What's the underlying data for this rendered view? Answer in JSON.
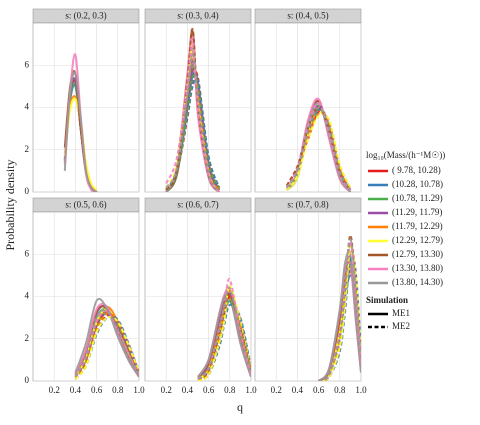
{
  "chart_data": {
    "type": "line",
    "xlabel": "q",
    "ylabel": "Probability density",
    "xlim": [
      0,
      1
    ],
    "xticks": [
      0.2,
      0.4,
      0.6,
      0.8,
      {
        "value": 1,
        "label": "1.0"
      }
    ],
    "ylim": [
      0,
      8
    ],
    "yticks": [
      0,
      2,
      4,
      6
    ],
    "grid": true,
    "legend_title": "log₁₀(Mass/(h⁻¹M☉))",
    "series": [
      {
        "name": "( 9.78, 10.28)",
        "color": "#e41a1c"
      },
      {
        "name": "(10.28, 10.78)",
        "color": "#377eb8"
      },
      {
        "name": "(10.78, 11.29)",
        "color": "#4daf4a"
      },
      {
        "name": "(11.29, 11.79)",
        "color": "#984ea3"
      },
      {
        "name": "(11.79, 12.29)",
        "color": "#ff7f00"
      },
      {
        "name": "(12.29, 12.79)",
        "color": "#ffff33"
      },
      {
        "name": "(12.79, 13.30)",
        "color": "#a65628"
      },
      {
        "name": "(13.30, 13.80)",
        "color": "#f781bf"
      },
      {
        "name": "(13.80, 14.30)",
        "color": "#999999"
      }
    ],
    "linetype_title": "Simulation",
    "linetypes": [
      {
        "name": "ME1",
        "dash": "solid"
      },
      {
        "name": "ME2",
        "dash": "dashed"
      }
    ],
    "panels": [
      {
        "title": "s: (0.2, 0.3)",
        "x": [
          0.3,
          0.35,
          0.4,
          0.45,
          0.5,
          0.55,
          0.6
        ],
        "lines": [
          [
            [
              1.5,
              4.5,
              5.2,
              3.0,
              1.0,
              0.2,
              0
            ],
            [
              1.4,
              4.3,
              5.0,
              3.1,
              1.1,
              0.2,
              0
            ],
            [
              1.5,
              4.4,
              5.1,
              3.0,
              1.0,
              0.2,
              0
            ],
            [
              1.6,
              4.6,
              5.3,
              3.0,
              0.9,
              0.2,
              0
            ],
            [
              1.8,
              4.0,
              4.5,
              3.2,
              1.2,
              0.3,
              0
            ],
            [
              1.7,
              3.9,
              4.4,
              3.4,
              1.4,
              0.4,
              0.1
            ],
            [
              2.1,
              5.0,
              5.6,
              3.0,
              0.9,
              0.2,
              0
            ],
            [
              1.3,
              4.8,
              6.5,
              3.6,
              0.9,
              0.1,
              0
            ],
            [
              1.0,
              4.7,
              5.6,
              3.5,
              1.0,
              0.2,
              0
            ]
          ],
          []
        ]
      },
      {
        "title": "s: (0.3, 0.4)",
        "x": [
          0.2,
          0.3,
          0.4,
          0.45,
          0.5,
          0.6,
          0.7
        ],
        "lines": [
          [
            [
              0,
              0.8,
              4.0,
              5.8,
              5.0,
              1.2,
              0.1
            ],
            [
              0,
              0.9,
              3.9,
              5.5,
              5.2,
              1.4,
              0.1
            ],
            [
              0,
              0.8,
              4.2,
              6.0,
              4.8,
              1.1,
              0.1
            ],
            [
              0,
              0.9,
              4.5,
              6.2,
              4.6,
              1.0,
              0.1
            ],
            [
              0,
              1.0,
              4.8,
              6.6,
              4.4,
              0.9,
              0.1
            ],
            [
              0,
              1.1,
              5.2,
              7.0,
              4.0,
              0.8,
              0
            ],
            [
              0,
              1.0,
              5.5,
              7.6,
              3.8,
              0.7,
              0
            ],
            [
              0,
              1.2,
              5.6,
              7.3,
              3.6,
              0.7,
              0
            ],
            [
              0,
              1.0,
              4.8,
              6.8,
              4.2,
              0.8,
              0
            ]
          ],
          [
            [
              0.1,
              0.9,
              3.5,
              5.2,
              5.4,
              1.6,
              0.2
            ],
            [
              0.1,
              1.0,
              3.6,
              5.0,
              5.3,
              1.7,
              0.2
            ],
            [
              0.1,
              0.9,
              3.8,
              5.4,
              5.0,
              1.4,
              0.2
            ],
            [
              0.2,
              1.1,
              4.2,
              5.8,
              4.8,
              1.2,
              0.1
            ],
            [
              0.2,
              1.2,
              4.6,
              6.4,
              4.6,
              1.0,
              0.1
            ],
            [
              0.2,
              1.3,
              5.0,
              6.9,
              4.2,
              0.9,
              0
            ],
            [
              0.1,
              1.0,
              5.3,
              7.7,
              4.0,
              0.8,
              0
            ],
            [
              0.4,
              1.6,
              5.0,
              7.0,
              3.8,
              0.8,
              0
            ],
            [
              0.2,
              1.1,
              4.6,
              6.5,
              4.4,
              0.9,
              0
            ]
          ]
        ]
      },
      {
        "title": "s: (0.4, 0.5)",
        "x": [
          0.3,
          0.4,
          0.5,
          0.6,
          0.7,
          0.8,
          0.9
        ],
        "lines": [
          [
            [
              0.1,
              0.7,
              2.8,
              4.0,
              3.0,
              0.9,
              0.1
            ],
            [
              0.1,
              0.7,
              2.9,
              3.9,
              3.0,
              0.9,
              0.1
            ],
            [
              0.1,
              0.8,
              3.0,
              4.1,
              2.8,
              0.8,
              0.1
            ],
            [
              0.1,
              0.9,
              3.2,
              4.3,
              2.6,
              0.7,
              0.1
            ],
            [
              0.1,
              0.8,
              3.0,
              4.0,
              2.9,
              0.8,
              0.1
            ],
            [
              0.1,
              0.7,
              2.8,
              3.8,
              3.1,
              1.0,
              0.1
            ],
            [
              0.1,
              0.9,
              3.3,
              4.3,
              2.6,
              0.7,
              0
            ],
            [
              0.1,
              1.0,
              3.4,
              4.4,
              2.5,
              0.6,
              0
            ],
            [
              0.1,
              0.9,
              3.2,
              4.2,
              2.7,
              0.7,
              0
            ]
          ],
          [
            [
              0.3,
              1.2,
              2.5,
              3.8,
              3.3,
              1.2,
              0.2
            ],
            [
              0.2,
              1.0,
              2.6,
              3.9,
              3.2,
              1.1,
              0.1
            ],
            [
              0.2,
              0.9,
              2.7,
              4.0,
              3.1,
              1.0,
              0.1
            ],
            [
              0.2,
              1.1,
              2.8,
              4.1,
              3.0,
              1.0,
              0.1
            ],
            [
              0.2,
              1.0,
              2.6,
              3.7,
              3.3,
              1.2,
              0.1
            ],
            [
              0.1,
              0.8,
              2.5,
              3.6,
              3.4,
              1.3,
              0.2
            ],
            [
              0.3,
              1.2,
              3.0,
              4.0,
              2.9,
              0.9,
              0.1
            ],
            [
              0.2,
              1.1,
              3.1,
              4.2,
              2.8,
              0.8,
              0.1
            ],
            [
              0.2,
              1.0,
              2.9,
              4.0,
              3.0,
              0.9,
              0.1
            ]
          ]
        ]
      },
      {
        "title": "s: (0.5, 0.6)",
        "x": [
          0.4,
          0.5,
          0.6,
          0.7,
          0.8,
          0.9,
          1.0
        ],
        "lines": [
          [
            [
              0.2,
              1.2,
              2.8,
              3.3,
              2.6,
              1.4,
              0.3
            ],
            [
              0.2,
              1.1,
              2.7,
              3.2,
              2.7,
              1.5,
              0.3
            ],
            [
              0.3,
              1.3,
              3.0,
              3.4,
              2.5,
              1.3,
              0.3
            ],
            [
              0.3,
              1.4,
              3.2,
              3.5,
              2.4,
              1.2,
              0.2
            ],
            [
              0.2,
              1.0,
              2.6,
              3.5,
              2.8,
              1.5,
              0.3
            ],
            [
              0.2,
              1.1,
              2.8,
              3.4,
              2.6,
              1.3,
              0.3
            ],
            [
              0.3,
              1.4,
              3.3,
              3.4,
              2.3,
              1.1,
              0.2
            ],
            [
              0.3,
              1.5,
              3.4,
              3.5,
              2.2,
              1.0,
              0.2
            ],
            [
              0.4,
              1.8,
              3.8,
              3.4,
              2.1,
              1.0,
              0.2
            ]
          ],
          [
            [
              0.1,
              0.8,
              2.3,
              3.1,
              2.8,
              1.7,
              0.4
            ],
            [
              0.1,
              0.7,
              2.2,
              3.0,
              2.9,
              1.8,
              0.4
            ],
            [
              0.1,
              0.9,
              2.5,
              3.2,
              2.7,
              1.6,
              0.3
            ],
            [
              0.2,
              1.0,
              2.6,
              3.2,
              2.6,
              1.5,
              0.3
            ],
            [
              0.1,
              0.8,
              2.4,
              3.2,
              2.8,
              1.7,
              0.4
            ],
            [
              0.1,
              0.7,
              2.3,
              3.0,
              2.8,
              1.7,
              0.4
            ],
            [
              0.2,
              1.0,
              2.7,
              3.3,
              2.5,
              1.4,
              0.3
            ],
            [
              0.2,
              1.1,
              2.8,
              3.3,
              2.4,
              1.3,
              0.3
            ],
            [
              0.2,
              1.2,
              3.0,
              3.3,
              2.4,
              1.2,
              0.3
            ]
          ]
        ]
      },
      {
        "title": "s: (0.6, 0.7)",
        "x": [
          0.5,
          0.6,
          0.7,
          0.75,
          0.8,
          0.9,
          1.0
        ],
        "lines": [
          [
            [
              0.1,
              0.6,
              2.3,
              3.4,
              3.9,
              2.2,
              0.3
            ],
            [
              0.1,
              0.5,
              2.2,
              3.3,
              3.8,
              2.4,
              0.4
            ],
            [
              0.1,
              0.7,
              2.5,
              3.5,
              4.0,
              2.1,
              0.3
            ],
            [
              0.2,
              0.8,
              2.8,
              3.8,
              4.2,
              2.0,
              0.3
            ],
            [
              0.1,
              0.6,
              2.4,
              3.4,
              4.1,
              2.2,
              0.3
            ],
            [
              0.1,
              0.5,
              2.1,
              3.2,
              3.9,
              2.5,
              0.4
            ],
            [
              0.2,
              0.9,
              3.0,
              3.9,
              4.0,
              1.9,
              0.3
            ],
            [
              0.2,
              1.0,
              3.2,
              4.1,
              4.2,
              1.8,
              0.2
            ],
            [
              0.2,
              1.0,
              3.1,
              4.0,
              4.1,
              1.8,
              0.2
            ]
          ],
          [
            [
              0,
              0.3,
              1.7,
              2.9,
              4.0,
              2.9,
              0.5
            ],
            [
              0,
              0.3,
              1.6,
              2.7,
              3.6,
              3.0,
              0.6
            ],
            [
              0,
              0.4,
              1.9,
              3.0,
              3.8,
              2.7,
              0.5
            ],
            [
              0.1,
              0.5,
              2.2,
              3.3,
              4.2,
              2.5,
              0.4
            ],
            [
              0,
              0.4,
              2.0,
              3.1,
              4.3,
              2.6,
              0.4
            ],
            [
              0,
              0.3,
              1.8,
              2.9,
              4.5,
              2.8,
              0.5
            ],
            [
              0.1,
              0.5,
              2.3,
              3.3,
              4.1,
              2.5,
              0.4
            ],
            [
              0.1,
              0.6,
              2.5,
              3.6,
              4.8,
              2.3,
              0.3
            ],
            [
              0.1,
              0.6,
              2.4,
              3.5,
              4.4,
              2.3,
              0.3
            ]
          ]
        ]
      },
      {
        "title": "s: (0.7, 0.8)",
        "x": [
          0.6,
          0.7,
          0.8,
          0.85,
          0.9,
          0.95,
          1.0
        ],
        "lines": [
          [
            [
              0,
              0.4,
              2.4,
              4.3,
              5.2,
              3.8,
              0.8
            ],
            [
              0,
              0.3,
              2.2,
              4.0,
              5.0,
              3.9,
              0.9
            ],
            [
              0,
              0.4,
              2.5,
              4.4,
              5.3,
              3.6,
              0.7
            ],
            [
              0,
              0.5,
              2.8,
              4.6,
              5.4,
              3.4,
              0.7
            ],
            [
              0,
              0.4,
              2.6,
              4.6,
              5.6,
              3.5,
              0.6
            ],
            [
              0,
              0.3,
              2.3,
              4.2,
              5.5,
              3.9,
              0.8
            ],
            [
              0,
              0.5,
              3.0,
              5.0,
              5.8,
              3.2,
              0.5
            ],
            [
              0,
              0.6,
              3.3,
              5.4,
              5.5,
              2.9,
              0.4
            ],
            [
              0,
              0.6,
              3.4,
              5.6,
              5.9,
              3.0,
              0.4
            ]
          ],
          [
            [
              0,
              0.2,
              1.6,
              3.6,
              6.2,
              5.0,
              1.2
            ],
            [
              0,
              0.2,
              1.4,
              3.3,
              5.8,
              5.2,
              1.4
            ],
            [
              0,
              0.2,
              1.7,
              3.8,
              6.4,
              4.8,
              1.1
            ],
            [
              0,
              0.3,
              2.0,
              4.2,
              6.6,
              4.5,
              1.0
            ],
            [
              0,
              0.2,
              1.8,
              3.9,
              6.5,
              4.7,
              1.0
            ],
            [
              0,
              0.2,
              1.6,
              3.7,
              6.3,
              5.0,
              1.2
            ],
            [
              0,
              0.3,
              2.2,
              4.4,
              6.9,
              4.3,
              0.9
            ],
            [
              0,
              0.3,
              2.3,
              4.6,
              6.6,
              4.1,
              0.8
            ],
            [
              0,
              0.3,
              2.2,
              4.5,
              6.7,
              4.2,
              0.9
            ]
          ]
        ]
      }
    ]
  }
}
